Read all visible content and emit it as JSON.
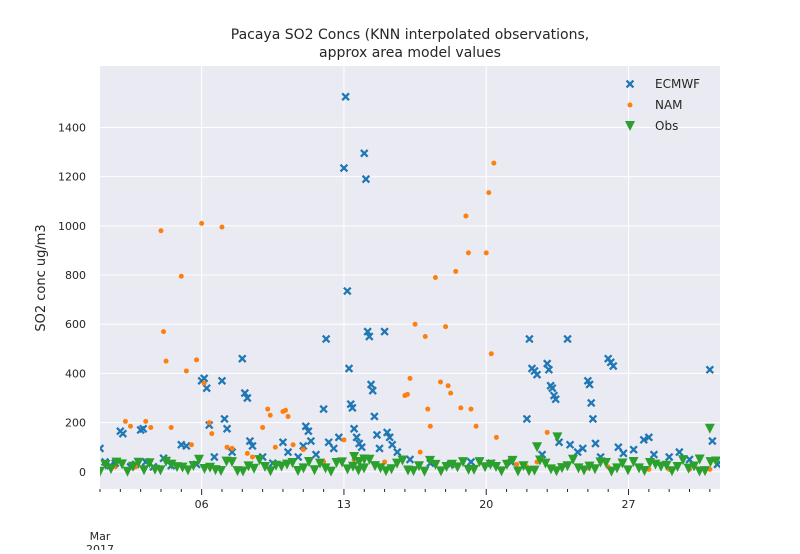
{
  "chart_data": {
    "type": "scatter",
    "title_lines": [
      "Pacaya SO2 Concs (KNN interpolated observations,",
      "approx area model values"
    ],
    "xlabel": "",
    "ylabel": "SO2 conc ug/m3",
    "x_range": [
      "2017-03-01",
      "2017-03-31T12:00"
    ],
    "ylim": [
      -70,
      1650
    ],
    "y_ticks": [
      0,
      200,
      400,
      600,
      800,
      1000,
      1200,
      1400
    ],
    "x_ticks": [
      {
        "x": "2017-03-06",
        "label": "06"
      },
      {
        "x": "2017-03-13",
        "label": "13"
      },
      {
        "x": "2017-03-20",
        "label": "20"
      },
      {
        "x": "2017-03-27",
        "label": "27"
      }
    ],
    "x_minor_ticks": [
      "2017-03-01",
      "2017-03-02",
      "2017-03-03",
      "2017-03-04",
      "2017-03-05",
      "2017-03-07",
      "2017-03-08",
      "2017-03-09",
      "2017-03-10",
      "2017-03-11",
      "2017-03-12",
      "2017-03-14",
      "2017-03-15",
      "2017-03-16",
      "2017-03-17",
      "2017-03-18",
      "2017-03-19",
      "2017-03-21",
      "2017-03-22",
      "2017-03-23",
      "2017-03-24",
      "2017-03-25",
      "2017-03-26",
      "2017-03-28",
      "2017-03-29",
      "2017-03-30",
      "2017-03-31"
    ],
    "x_month_label": "Mar",
    "x_year_label": "2017",
    "grid": true,
    "legend_position": "top-right",
    "series": [
      {
        "name": "ECMWF",
        "marker": "X",
        "color": "#1f77b4",
        "points": [
          [
            "2017-03-01T00:00",
            95
          ],
          [
            "2017-03-01T06:00",
            40
          ],
          [
            "2017-03-01T12:00",
            25
          ],
          [
            "2017-03-01T18:00",
            35
          ],
          [
            "2017-03-02T00:00",
            165
          ],
          [
            "2017-03-02T03:00",
            155
          ],
          [
            "2017-03-02T12:00",
            20
          ],
          [
            "2017-03-02T18:00",
            30
          ],
          [
            "2017-03-03T00:00",
            170
          ],
          [
            "2017-03-03T03:00",
            175
          ],
          [
            "2017-03-03T06:00",
            40
          ],
          [
            "2017-03-03T15:00",
            20
          ],
          [
            "2017-03-04T03:00",
            55
          ],
          [
            "2017-03-04T12:00",
            25
          ],
          [
            "2017-03-05T00:00",
            110
          ],
          [
            "2017-03-05T06:00",
            105
          ],
          [
            "2017-03-05T18:00",
            30
          ],
          [
            "2017-03-06T00:00",
            370
          ],
          [
            "2017-03-06T03:00",
            380
          ],
          [
            "2017-03-06T06:00",
            340
          ],
          [
            "2017-03-06T09:00",
            190
          ],
          [
            "2017-03-06T15:00",
            60
          ],
          [
            "2017-03-07T00:00",
            370
          ],
          [
            "2017-03-07T03:00",
            215
          ],
          [
            "2017-03-07T06:00",
            175
          ],
          [
            "2017-03-07T12:00",
            80
          ],
          [
            "2017-03-08T00:00",
            460
          ],
          [
            "2017-03-08T03:00",
            320
          ],
          [
            "2017-03-08T06:00",
            300
          ],
          [
            "2017-03-08T09:00",
            125
          ],
          [
            "2017-03-08T12:00",
            105
          ],
          [
            "2017-03-09T00:00",
            60
          ],
          [
            "2017-03-09T12:00",
            35
          ],
          [
            "2017-03-10T00:00",
            120
          ],
          [
            "2017-03-10T06:00",
            80
          ],
          [
            "2017-03-10T18:00",
            60
          ],
          [
            "2017-03-11T00:00",
            105
          ],
          [
            "2017-03-11T03:00",
            185
          ],
          [
            "2017-03-11T06:00",
            165
          ],
          [
            "2017-03-11T09:00",
            125
          ],
          [
            "2017-03-11T15:00",
            70
          ],
          [
            "2017-03-12T00:00",
            255
          ],
          [
            "2017-03-12T03:00",
            540
          ],
          [
            "2017-03-12T06:00",
            120
          ],
          [
            "2017-03-12T12:00",
            95
          ],
          [
            "2017-03-12T18:00",
            140
          ],
          [
            "2017-03-13T00:00",
            1235
          ],
          [
            "2017-03-13T02:00",
            1525
          ],
          [
            "2017-03-13T04:00",
            735
          ],
          [
            "2017-03-13T06:00",
            420
          ],
          [
            "2017-03-13T08:00",
            275
          ],
          [
            "2017-03-13T10:00",
            260
          ],
          [
            "2017-03-13T12:00",
            175
          ],
          [
            "2017-03-13T15:00",
            140
          ],
          [
            "2017-03-13T18:00",
            115
          ],
          [
            "2017-03-13T21:00",
            100
          ],
          [
            "2017-03-14T00:00",
            1295
          ],
          [
            "2017-03-14T02:00",
            1190
          ],
          [
            "2017-03-14T04:00",
            570
          ],
          [
            "2017-03-14T06:00",
            550
          ],
          [
            "2017-03-14T08:00",
            355
          ],
          [
            "2017-03-14T10:00",
            330
          ],
          [
            "2017-03-14T12:00",
            225
          ],
          [
            "2017-03-14T15:00",
            150
          ],
          [
            "2017-03-14T18:00",
            95
          ],
          [
            "2017-03-15T00:00",
            570
          ],
          [
            "2017-03-15T03:00",
            160
          ],
          [
            "2017-03-15T06:00",
            140
          ],
          [
            "2017-03-15T09:00",
            110
          ],
          [
            "2017-03-15T15:00",
            80
          ],
          [
            "2017-03-16T06:00",
            50
          ],
          [
            "2017-03-17T06:00",
            35
          ],
          [
            "2017-03-18T06:00",
            30
          ],
          [
            "2017-03-19T06:00",
            40
          ],
          [
            "2017-03-20T06:00",
            35
          ],
          [
            "2017-03-21T06:00",
            40
          ],
          [
            "2017-03-22T00:00",
            215
          ],
          [
            "2017-03-22T03:00",
            540
          ],
          [
            "2017-03-22T06:00",
            420
          ],
          [
            "2017-03-22T09:00",
            410
          ],
          [
            "2017-03-22T12:00",
            395
          ],
          [
            "2017-03-22T18:00",
            70
          ],
          [
            "2017-03-23T00:00",
            440
          ],
          [
            "2017-03-23T02:00",
            415
          ],
          [
            "2017-03-23T04:00",
            350
          ],
          [
            "2017-03-23T06:00",
            340
          ],
          [
            "2017-03-23T08:00",
            310
          ],
          [
            "2017-03-23T10:00",
            295
          ],
          [
            "2017-03-23T14:00",
            120
          ],
          [
            "2017-03-24T00:00",
            540
          ],
          [
            "2017-03-24T03:00",
            110
          ],
          [
            "2017-03-24T12:00",
            80
          ],
          [
            "2017-03-24T18:00",
            95
          ],
          [
            "2017-03-25T00:00",
            370
          ],
          [
            "2017-03-25T02:00",
            355
          ],
          [
            "2017-03-25T04:00",
            280
          ],
          [
            "2017-03-25T06:00",
            215
          ],
          [
            "2017-03-25T09:00",
            115
          ],
          [
            "2017-03-25T15:00",
            60
          ],
          [
            "2017-03-26T00:00",
            460
          ],
          [
            "2017-03-26T03:00",
            445
          ],
          [
            "2017-03-26T06:00",
            430
          ],
          [
            "2017-03-26T12:00",
            100
          ],
          [
            "2017-03-26T18:00",
            75
          ],
          [
            "2017-03-27T06:00",
            90
          ],
          [
            "2017-03-27T18:00",
            130
          ],
          [
            "2017-03-28T00:00",
            140
          ],
          [
            "2017-03-28T06:00",
            70
          ],
          [
            "2017-03-29T00:00",
            60
          ],
          [
            "2017-03-29T12:00",
            80
          ],
          [
            "2017-03-30T00:00",
            50
          ],
          [
            "2017-03-31T00:00",
            415
          ],
          [
            "2017-03-31T03:00",
            125
          ],
          [
            "2017-03-31T09:00",
            30
          ]
        ]
      },
      {
        "name": "NAM",
        "marker": "dot",
        "color": "#ff7f0e",
        "points": [
          [
            "2017-03-01T06:00",
            30
          ],
          [
            "2017-03-01T18:00",
            20
          ],
          [
            "2017-03-02T06:00",
            205
          ],
          [
            "2017-03-02T12:00",
            185
          ],
          [
            "2017-03-02T18:00",
            20
          ],
          [
            "2017-03-03T06:00",
            205
          ],
          [
            "2017-03-03T12:00",
            180
          ],
          [
            "2017-03-04T00:00",
            980
          ],
          [
            "2017-03-04T03:00",
            570
          ],
          [
            "2017-03-04T06:00",
            450
          ],
          [
            "2017-03-04T12:00",
            180
          ],
          [
            "2017-03-05T00:00",
            795
          ],
          [
            "2017-03-05T06:00",
            410
          ],
          [
            "2017-03-05T12:00",
            110
          ],
          [
            "2017-03-05T18:00",
            455
          ],
          [
            "2017-03-06T00:00",
            1010
          ],
          [
            "2017-03-06T03:00",
            360
          ],
          [
            "2017-03-06T09:00",
            200
          ],
          [
            "2017-03-06T12:00",
            155
          ],
          [
            "2017-03-07T00:00",
            995
          ],
          [
            "2017-03-07T06:00",
            100
          ],
          [
            "2017-03-07T12:00",
            95
          ],
          [
            "2017-03-08T06:00",
            75
          ],
          [
            "2017-03-08T12:00",
            60
          ],
          [
            "2017-03-09T00:00",
            180
          ],
          [
            "2017-03-09T06:00",
            255
          ],
          [
            "2017-03-09T09:00",
            230
          ],
          [
            "2017-03-09T15:00",
            100
          ],
          [
            "2017-03-10T00:00",
            245
          ],
          [
            "2017-03-10T03:00",
            250
          ],
          [
            "2017-03-10T06:00",
            225
          ],
          [
            "2017-03-10T12:00",
            110
          ],
          [
            "2017-03-11T00:00",
            90
          ],
          [
            "2017-03-12T00:00",
            40
          ],
          [
            "2017-03-13T00:00",
            130
          ],
          [
            "2017-03-13T12:00",
            50
          ],
          [
            "2017-03-14T00:00",
            60
          ],
          [
            "2017-03-15T00:00",
            40
          ],
          [
            "2017-03-16T00:00",
            310
          ],
          [
            "2017-03-16T03:00",
            315
          ],
          [
            "2017-03-16T06:00",
            380
          ],
          [
            "2017-03-16T12:00",
            600
          ],
          [
            "2017-03-16T18:00",
            80
          ],
          [
            "2017-03-17T00:00",
            550
          ],
          [
            "2017-03-17T03:00",
            255
          ],
          [
            "2017-03-17T06:00",
            185
          ],
          [
            "2017-03-17T12:00",
            790
          ],
          [
            "2017-03-17T18:00",
            365
          ],
          [
            "2017-03-18T00:00",
            590
          ],
          [
            "2017-03-18T03:00",
            350
          ],
          [
            "2017-03-18T06:00",
            320
          ],
          [
            "2017-03-18T12:00",
            815
          ],
          [
            "2017-03-18T18:00",
            260
          ],
          [
            "2017-03-19T00:00",
            1040
          ],
          [
            "2017-03-19T03:00",
            890
          ],
          [
            "2017-03-19T06:00",
            255
          ],
          [
            "2017-03-19T12:00",
            185
          ],
          [
            "2017-03-20T00:00",
            890
          ],
          [
            "2017-03-20T03:00",
            1135
          ],
          [
            "2017-03-20T06:00",
            480
          ],
          [
            "2017-03-20T09:00",
            1255
          ],
          [
            "2017-03-20T12:00",
            140
          ],
          [
            "2017-03-21T00:00",
            40
          ],
          [
            "2017-03-21T12:00",
            30
          ],
          [
            "2017-03-22T00:00",
            20
          ],
          [
            "2017-03-22T12:00",
            40
          ],
          [
            "2017-03-23T00:00",
            160
          ],
          [
            "2017-03-23T06:00",
            20
          ],
          [
            "2017-03-23T12:00",
            10
          ],
          [
            "2017-03-24T00:00",
            25
          ],
          [
            "2017-03-25T00:00",
            15
          ],
          [
            "2017-03-26T00:00",
            20
          ],
          [
            "2017-03-27T00:00",
            15
          ],
          [
            "2017-03-28T00:00",
            10
          ],
          [
            "2017-03-29T00:00",
            10
          ],
          [
            "2017-03-30T00:00",
            10
          ],
          [
            "2017-03-31T00:00",
            10
          ]
        ]
      },
      {
        "name": "Obs",
        "marker": "triangle-down",
        "color": "#2ca02c",
        "points": [
          [
            "2017-03-13T12:00",
            60
          ],
          [
            "2017-03-13T18:00",
            40
          ],
          [
            "2017-03-14T00:00",
            50
          ],
          [
            "2017-03-22T12:00",
            100
          ],
          [
            "2017-03-23T12:00",
            140
          ],
          [
            "2017-03-31T00:00",
            175
          ],
          [
            "2017-03-30T12:00",
            50
          ]
        ],
        "band": {
          "from": "2017-03-01",
          "to": "2017-03-31T12:00",
          "ymin": 0,
          "ymax": 50
        }
      }
    ]
  }
}
